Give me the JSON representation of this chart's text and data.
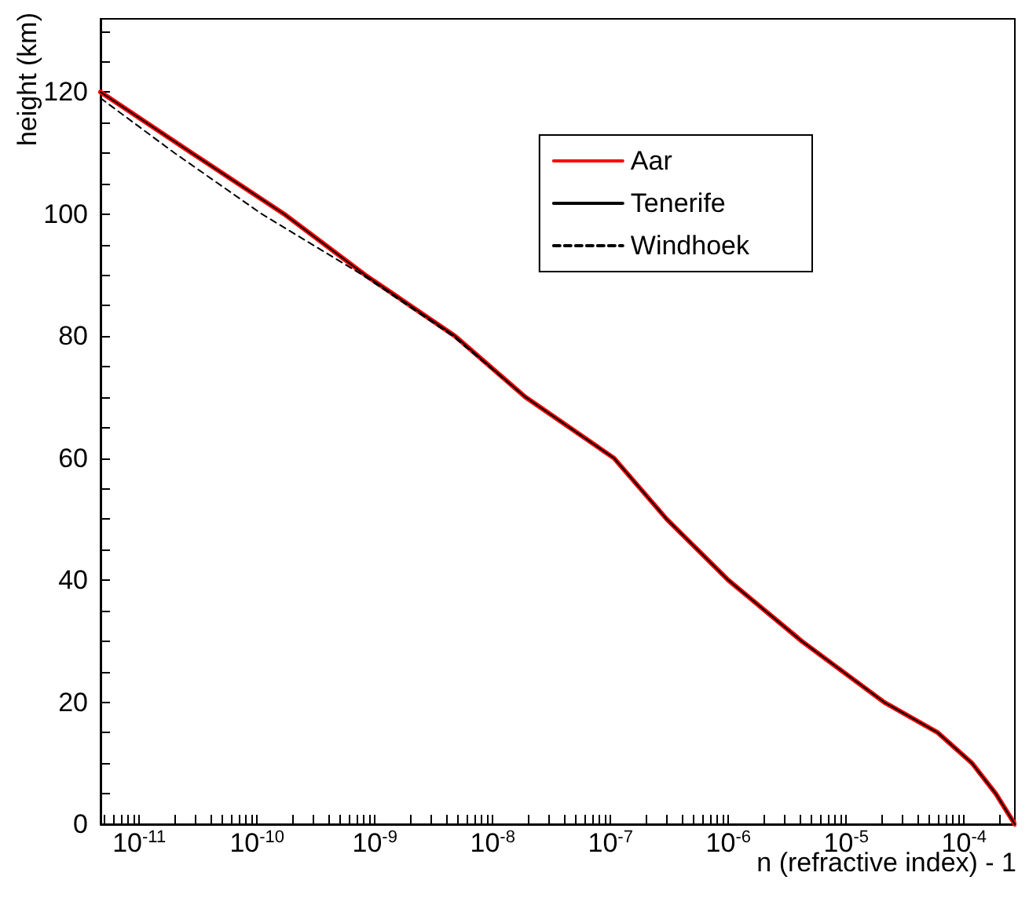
{
  "chart_data": {
    "type": "line",
    "xlabel": "n (refractive index) - 1",
    "ylabel": "height (km)",
    "log": "x",
    "grid": false,
    "legend": "top right",
    "marker": "none",
    "xlim": [
      4.7e-12,
      0.00027
    ],
    "ylim": [
      0,
      132
    ],
    "xticks": [
      {
        "value": 5e-12,
        "label": null
      },
      {
        "value": 6e-12,
        "label": null
      },
      {
        "value": 7e-12,
        "label": null
      },
      {
        "value": 8e-12,
        "label": null
      },
      {
        "value": 9e-12,
        "label": null
      },
      {
        "value": 1e-11,
        "label": "10$^{-11}$"
      },
      {
        "value": 2e-11,
        "label": null
      },
      {
        "value": 3e-11,
        "label": null
      },
      {
        "value": 4e-11,
        "label": null
      },
      {
        "value": 5e-11,
        "label": null
      },
      {
        "value": 6e-11,
        "label": null
      },
      {
        "value": 7e-11,
        "label": null
      },
      {
        "value": 8e-11,
        "label": null
      },
      {
        "value": 9e-11,
        "label": null
      },
      {
        "value": 1e-10,
        "label": "10$^{-10}$"
      },
      {
        "value": 2e-10,
        "label": null
      },
      {
        "value": 3e-10,
        "label": null
      },
      {
        "value": 4e-10,
        "label": null
      },
      {
        "value": 5e-10,
        "label": null
      },
      {
        "value": 6e-10,
        "label": null
      },
      {
        "value": 7e-10,
        "label": null
      },
      {
        "value": 8e-10,
        "label": null
      },
      {
        "value": 9e-10,
        "label": null
      },
      {
        "value": 1e-09,
        "label": "10$^{-9}$"
      },
      {
        "value": 2e-09,
        "label": null
      },
      {
        "value": 3e-09,
        "label": null
      },
      {
        "value": 4e-09,
        "label": null
      },
      {
        "value": 5e-09,
        "label": null
      },
      {
        "value": 6e-09,
        "label": null
      },
      {
        "value": 7e-09,
        "label": null
      },
      {
        "value": 8e-09,
        "label": null
      },
      {
        "value": 9e-09,
        "label": null
      },
      {
        "value": 1e-08,
        "label": "10$^{-8}$"
      },
      {
        "value": 2e-08,
        "label": null
      },
      {
        "value": 3e-08,
        "label": null
      },
      {
        "value": 4e-08,
        "label": null
      },
      {
        "value": 5e-08,
        "label": null
      },
      {
        "value": 6e-08,
        "label": null
      },
      {
        "value": 7e-08,
        "label": null
      },
      {
        "value": 8e-08,
        "label": null
      },
      {
        "value": 9e-08,
        "label": null
      },
      {
        "value": 1e-07,
        "label": "10$^{-7}$"
      },
      {
        "value": 2e-07,
        "label": null
      },
      {
        "value": 3e-07,
        "label": null
      },
      {
        "value": 4e-07,
        "label": null
      },
      {
        "value": 5e-07,
        "label": null
      },
      {
        "value": 6e-07,
        "label": null
      },
      {
        "value": 7e-07,
        "label": null
      },
      {
        "value": 8e-07,
        "label": null
      },
      {
        "value": 9e-07,
        "label": null
      },
      {
        "value": 1e-06,
        "label": "10$^{-6}$"
      },
      {
        "value": 2e-06,
        "label": null
      },
      {
        "value": 3e-06,
        "label": null
      },
      {
        "value": 4e-06,
        "label": null
      },
      {
        "value": 5e-06,
        "label": null
      },
      {
        "value": 6e-06,
        "label": null
      },
      {
        "value": 7e-06,
        "label": null
      },
      {
        "value": 8e-06,
        "label": null
      },
      {
        "value": 9e-06,
        "label": null
      },
      {
        "value": 1e-05,
        "label": "10$^{-5}$"
      },
      {
        "value": 2e-05,
        "label": null
      },
      {
        "value": 3e-05,
        "label": null
      },
      {
        "value": 4e-05,
        "label": null
      },
      {
        "value": 5e-05,
        "label": null
      },
      {
        "value": 6e-05,
        "label": null
      },
      {
        "value": 7e-05,
        "label": null
      },
      {
        "value": 8e-05,
        "label": null
      },
      {
        "value": 9e-05,
        "label": null
      },
      {
        "value": 0.0001,
        "label": "10$^{-4}$"
      },
      {
        "value": 0.0002,
        "label": null
      }
    ],
    "yticks": [
      0,
      {
        "value": 5,
        "label": null
      },
      {
        "value": 10,
        "label": null
      },
      {
        "value": 15,
        "label": null
      },
      20,
      {
        "value": 25,
        "label": null
      },
      {
        "value": 30,
        "label": null
      },
      {
        "value": 35,
        "label": null
      },
      40,
      {
        "value": 45,
        "label": null
      },
      {
        "value": 50,
        "label": null
      },
      {
        "value": 55,
        "label": null
      },
      60,
      {
        "value": 65,
        "label": null
      },
      {
        "value": 70,
        "label": null
      },
      {
        "value": 75,
        "label": null
      },
      80,
      {
        "value": 85,
        "label": null
      },
      {
        "value": 90,
        "label": null
      },
      {
        "value": 95,
        "label": null
      },
      100,
      {
        "value": 105,
        "label": null
      },
      {
        "value": 110,
        "label": null
      },
      {
        "value": 115,
        "label": null
      },
      120,
      {
        "value": 125,
        "label": null
      },
      {
        "value": 130,
        "label": null
      }
    ],
    "series": [
      {
        "name": "Aar",
        "color": "#ff0000",
        "line_style": "solid",
        "x": [
          4.7e-12,
          2.8e-11,
          1.7e-10,
          8.3e-10,
          4.8e-09,
          1.9e-08,
          1.07e-07,
          3e-07,
          1e-06,
          4.2e-06,
          2.1e-05,
          6e-05,
          0.000117,
          0.000186,
          0.00027
        ],
        "values": [
          120,
          110,
          100,
          90,
          80,
          70,
          60,
          50,
          40,
          30,
          20,
          15,
          10,
          5,
          0
        ]
      },
      {
        "name": "Tenerife",
        "color": "#000000",
        "line_style": "solid",
        "x": [
          4.7e-12,
          2.8e-11,
          1.7e-10,
          8.3e-10,
          4.8e-09,
          1.9e-08,
          1.07e-07,
          3e-07,
          1e-06,
          4.2e-06,
          2.1e-05,
          6e-05,
          0.000117,
          0.000186,
          0.00027
        ],
        "values": [
          120,
          110,
          100,
          90,
          80,
          70,
          60,
          50,
          40,
          30,
          20,
          15,
          10,
          5,
          0
        ]
      },
      {
        "name": "Windhoek",
        "color": "#000000",
        "line_style": "dashed",
        "x": [
          4.7e-12,
          2e-11,
          1.1e-10,
          7.9e-10,
          4.6e-09,
          1.9e-08,
          1.07e-07,
          3e-07,
          1e-06,
          4.2e-06,
          2.1e-05,
          6e-05,
          0.000117,
          0.000186,
          0.00027
        ],
        "values": [
          119,
          110,
          100,
          90,
          80,
          70,
          60,
          50,
          40,
          30,
          20,
          15,
          10,
          5,
          0
        ]
      }
    ]
  }
}
